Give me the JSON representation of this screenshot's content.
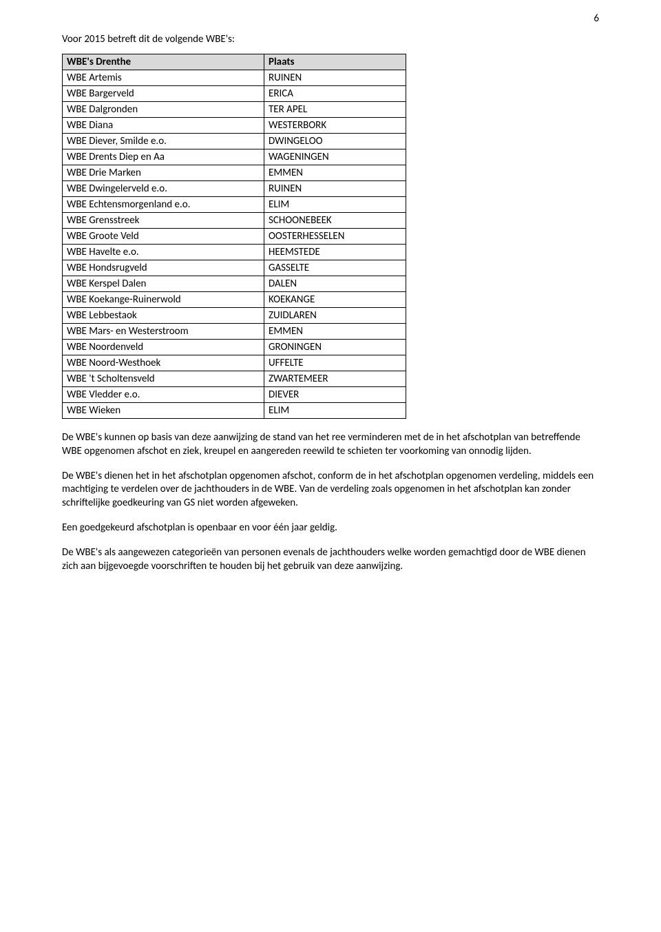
{
  "page_number": "6",
  "intro": "Voor 2015 betreft dit de volgende WBE's:",
  "table": {
    "header_col1": "WBE's Drenthe",
    "header_col2": "Plaats",
    "rows": [
      {
        "c1": "WBE Artemis",
        "c2": "RUINEN"
      },
      {
        "c1": "WBE Bargerveld",
        "c2": "ERICA"
      },
      {
        "c1": "WBE Dalgronden",
        "c2": "TER APEL"
      },
      {
        "c1": "WBE Diana",
        "c2": "WESTERBORK"
      },
      {
        "c1": "WBE Diever, Smilde e.o.",
        "c2": "DWINGELOO"
      },
      {
        "c1": "WBE Drents Diep en Aa",
        "c2": "WAGENINGEN"
      },
      {
        "c1": "WBE Drie Marken",
        "c2": "EMMEN"
      },
      {
        "c1": "WBE Dwingelerveld e.o.",
        "c2": "RUINEN"
      },
      {
        "c1": "WBE Echtensmorgenland e.o.",
        "c2": "ELIM"
      },
      {
        "c1": "WBE Grensstreek",
        "c2": "SCHOONEBEEK"
      },
      {
        "c1": "WBE Groote Veld",
        "c2": "OOSTERHESSELEN"
      },
      {
        "c1": "WBE Havelte e.o.",
        "c2": "HEEMSTEDE"
      },
      {
        "c1": "WBE Hondsrugveld",
        "c2": "GASSELTE"
      },
      {
        "c1": "WBE Kerspel Dalen",
        "c2": "DALEN"
      },
      {
        "c1": "WBE Koekange-Ruinerwold",
        "c2": "KOEKANGE"
      },
      {
        "c1": "WBE Lebbestaok",
        "c2": "ZUIDLAREN"
      },
      {
        "c1": "WBE Mars- en Westerstroom",
        "c2": "EMMEN"
      },
      {
        "c1": "WBE Noordenveld",
        "c2": "GRONINGEN"
      },
      {
        "c1": "WBE Noord-Westhoek",
        "c2": "UFFELTE"
      },
      {
        "c1": "WBE 't Scholtensveld",
        "c2": "ZWARTEMEER"
      },
      {
        "c1": "WBE Vledder e.o.",
        "c2": "DIEVER"
      },
      {
        "c1": "WBE Wieken",
        "c2": "ELIM"
      }
    ]
  },
  "para1": "De WBE's kunnen op basis van deze aanwijzing de stand van het ree verminderen met de in het afschotplan van betreffende WBE opgenomen afschot en ziek, kreupel en aangereden reewild te schieten ter voorkoming van onnodig lijden.",
  "para2": "De WBE's dienen het in het afschotplan opgenomen afschot, conform de in het afschotplan opgenomen verdeling, middels een machtiging te verdelen over de jachthouders in de WBE. Van de verdeling zoals opgenomen in het afschotplan kan zonder schriftelijke goedkeuring van GS niet worden afgeweken.",
  "para3": "Een goedgekeurd afschotplan is openbaar en voor één jaar geldig.",
  "para4": "De WBE's als aangewezen categorieën van personen evenals de jachthouders welke worden gemachtigd door de WBE dienen zich aan bijgevoegde voorschriften te houden bij het gebruik van deze aanwijzing."
}
